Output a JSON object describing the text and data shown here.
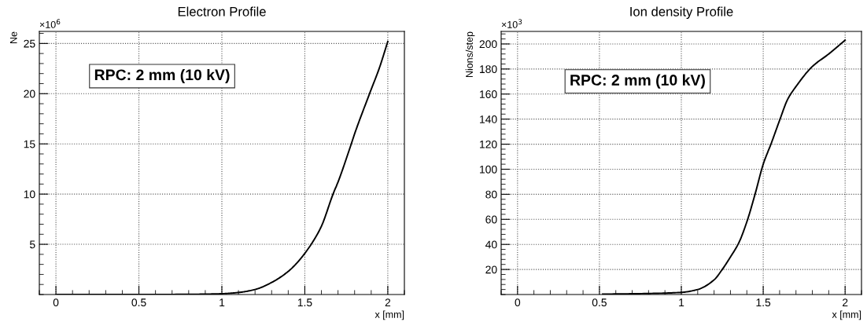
{
  "chart_data": [
    {
      "type": "line",
      "title": "Electron Profile",
      "xlabel": "x [mm]",
      "ylabel": "Ne",
      "annotations": [
        "RPC: 2 mm (10 kV)",
        "×10$^{6}$"
      ],
      "x": [
        0,
        0.5,
        0.8,
        1.0,
        1.1,
        1.2,
        1.3,
        1.4,
        1.45,
        1.5,
        1.55,
        1.6,
        1.67,
        1.7,
        1.78,
        1.8,
        1.89,
        1.95,
        2.0
      ],
      "series": [
        {
          "color": "#000000",
          "values": [
            0,
            0,
            0.02,
            0.08,
            0.2,
            0.5,
            1.2,
            2.3,
            3.1,
            4.1,
            5.3,
            6.8,
            10.0,
            11.2,
            15.0,
            16.0,
            20.0,
            22.6,
            25.2
          ]
        }
      ],
      "xlim": [
        -0.1,
        2.1
      ],
      "xticks": [
        0,
        0.5,
        1,
        1.5,
        2
      ],
      "ylim": [
        0,
        26.2
      ],
      "yticks": [
        5,
        10,
        15,
        20,
        25
      ],
      "grid": true,
      "line_style": "solid",
      "legend": false
    },
    {
      "type": "line",
      "title": "Ion density Profile",
      "xlabel": "x [mm]",
      "ylabel": "Nions/step",
      "annotations": [
        "RPC: 2 mm (10 kV)",
        "×10$^{3}$"
      ],
      "x": [
        0.52,
        0.8,
        1.0,
        1.1,
        1.2,
        1.25,
        1.3,
        1.35,
        1.4,
        1.45,
        1.5,
        1.55,
        1.6,
        1.65,
        1.7,
        1.8,
        1.9,
        2.0
      ],
      "series": [
        {
          "color": "#000000",
          "values": [
            0.3,
            0.8,
            1.7,
            4,
            11.7,
            20,
            30,
            41,
            58,
            80,
            104,
            121,
            139,
            156,
            166,
            182,
            192,
            203
          ]
        }
      ],
      "xlim": [
        -0.1,
        2.1
      ],
      "xticks": [
        0,
        0.5,
        1,
        1.5,
        2
      ],
      "ylim": [
        0,
        210
      ],
      "yticks": [
        20,
        40,
        60,
        80,
        100,
        120,
        140,
        160,
        180,
        200
      ],
      "grid": true,
      "line_style": "solid",
      "legend": false
    }
  ]
}
